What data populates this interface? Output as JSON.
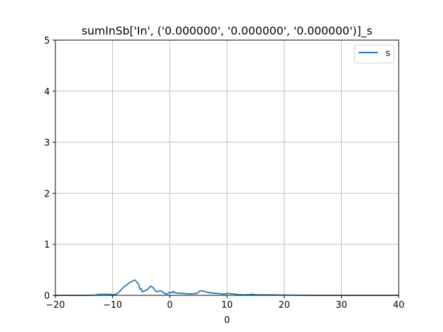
{
  "chart_data": {
    "type": "line",
    "title": "sumInSb['In', ('0.000000', '0.000000', '0.000000')]_s",
    "xlabel": "0",
    "ylabel": "",
    "xlim": [
      -20,
      40
    ],
    "ylim": [
      0,
      5
    ],
    "xticks": [
      -20,
      -10,
      0,
      10,
      20,
      30,
      40
    ],
    "yticks": [
      0,
      1,
      2,
      3,
      4,
      5
    ],
    "grid": true,
    "legend_position": "top-right",
    "series": [
      {
        "name": "s",
        "color": "#1f77b4",
        "x": [
          -20,
          -14,
          -13,
          -12.5,
          -12,
          -11,
          -10,
          -9.5,
          -9,
          -8.5,
          -8,
          -7.5,
          -7,
          -6.5,
          -6.2,
          -6,
          -5.7,
          -5.4,
          -5.2,
          -5,
          -4.8,
          -4.5,
          -4,
          -3.6,
          -3.3,
          -3,
          -2.6,
          -2.3,
          -2,
          -1.6,
          -1.2,
          -0.8,
          -0.4,
          0,
          0.3,
          0.6,
          0.8,
          1,
          1.5,
          2,
          3,
          4,
          4.8,
          5.2,
          5.6,
          6,
          6.5,
          7,
          8,
          9,
          9.5,
          10,
          10.5,
          11,
          11.5,
          12,
          13,
          14,
          14.5,
          15,
          16,
          18,
          20,
          25,
          30,
          40
        ],
        "y": [
          0,
          0,
          0.005,
          0.015,
          0.02,
          0.02,
          0.015,
          0.015,
          0.05,
          0.11,
          0.17,
          0.21,
          0.25,
          0.28,
          0.3,
          0.29,
          0.25,
          0.2,
          0.12,
          0.13,
          0.07,
          0.08,
          0.11,
          0.15,
          0.18,
          0.16,
          0.1,
          0.07,
          0.08,
          0.09,
          0.06,
          0.03,
          0.03,
          0.06,
          0.05,
          0.08,
          0.05,
          0.05,
          0.04,
          0.04,
          0.03,
          0.03,
          0.04,
          0.08,
          0.09,
          0.08,
          0.06,
          0.05,
          0.04,
          0.03,
          0.02,
          0.04,
          0.03,
          0.03,
          0.02,
          0.015,
          0.01,
          0.015,
          0.02,
          0.01,
          0.01,
          0.01,
          0.005,
          0,
          0,
          0
        ]
      }
    ]
  }
}
